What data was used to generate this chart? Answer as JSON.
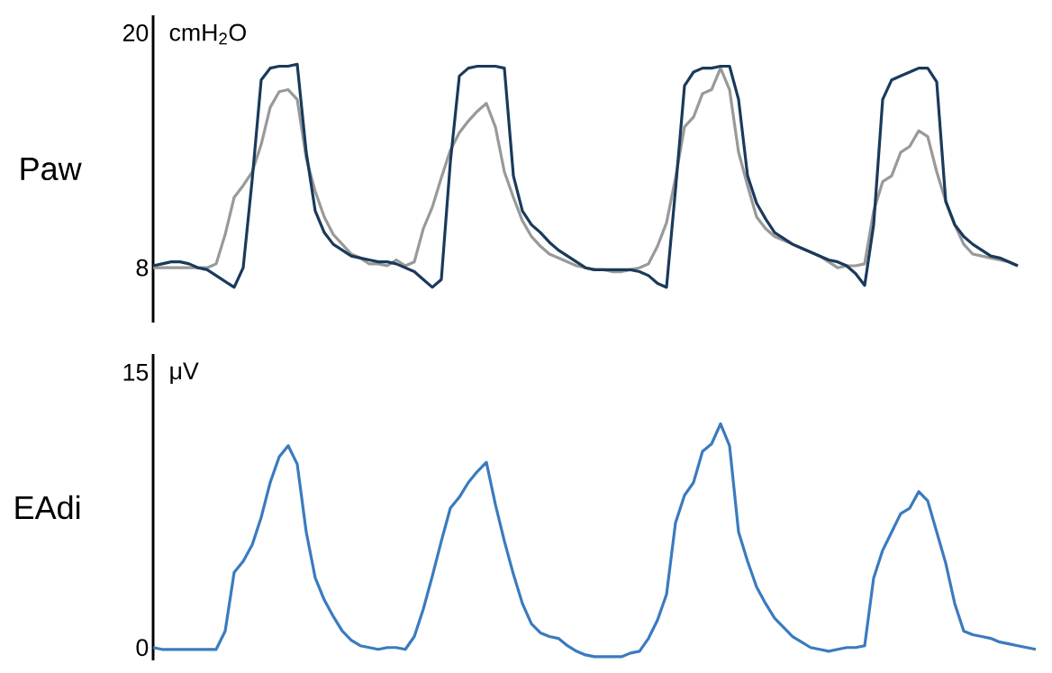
{
  "chart_data": [
    {
      "type": "line",
      "ylabel": "Paw",
      "annotations": [
        "cmH$_{2}$O"
      ],
      "tick_labels": "y",
      "ylim": [
        5.2,
        20.9
      ],
      "yticks": [
        8,
        20
      ],
      "categories": [
        null,
        null,
        null,
        null,
        null,
        null,
        null,
        null,
        null,
        null,
        null,
        null,
        null,
        null,
        null,
        null,
        null,
        null,
        null,
        null,
        null,
        null,
        null,
        null,
        null,
        null,
        null,
        null,
        null,
        null,
        null,
        null,
        null,
        null,
        null,
        null,
        null,
        null,
        null,
        null,
        null,
        null,
        null,
        null,
        null,
        null,
        null,
        null,
        null,
        null,
        null,
        null,
        null,
        null,
        null,
        null,
        null,
        null,
        null,
        null,
        null,
        null,
        null,
        null,
        null,
        null,
        null,
        null,
        null,
        null,
        null,
        null,
        null,
        null,
        null,
        null,
        null,
        null,
        null,
        null,
        null,
        null,
        null,
        null,
        null,
        null,
        null,
        null,
        null,
        null,
        null,
        null,
        null,
        null,
        null,
        null,
        null,
        null,
        null
      ],
      "series": [
        {
          "color": "#999999",
          "values": [
            8.0,
            8.0,
            8.0,
            8.0,
            8.0,
            8.0,
            8.0,
            8.2,
            9.7,
            11.6,
            12.2,
            12.9,
            14.3,
            16.2,
            17.0,
            17.1,
            16.6,
            13.6,
            11.9,
            10.6,
            9.7,
            9.2,
            8.7,
            8.5,
            8.2,
            8.2,
            8.1,
            8.4,
            8.1,
            8.3,
            10.0,
            11.1,
            12.6,
            14.0,
            14.9,
            15.5,
            16.0,
            16.4,
            15.2,
            12.9,
            11.6,
            10.4,
            9.6,
            9.1,
            8.7,
            8.5,
            8.3,
            8.1,
            8.0,
            7.9,
            7.9,
            7.8,
            7.8,
            7.9,
            8.0,
            8.2,
            9.1,
            10.3,
            12.6,
            15.2,
            15.7,
            16.9,
            17.1,
            18.2,
            17.1,
            13.9,
            12.2,
            10.6,
            10.0,
            9.6,
            9.4,
            9.2,
            9.0,
            8.8,
            8.6,
            8.3,
            8.0,
            8.1,
            8.1,
            8.2,
            10.9,
            12.4,
            12.7,
            13.9,
            14.2,
            15.0,
            14.7,
            12.9,
            11.4,
            10.2,
            9.2,
            8.7,
            8.6,
            8.5,
            8.4,
            8.3,
            8.1,
            null,
            null
          ]
        },
        {
          "color": "#1a3a5c",
          "values": [
            8.1,
            8.2,
            8.3,
            8.3,
            8.2,
            8.0,
            7.9,
            7.6,
            7.3,
            7.0,
            8.0,
            12.5,
            17.6,
            18.2,
            18.3,
            18.3,
            18.4,
            13.9,
            10.9,
            9.8,
            9.2,
            8.9,
            8.6,
            8.5,
            8.4,
            8.3,
            8.3,
            8.2,
            8.0,
            7.8,
            7.4,
            7.0,
            7.4,
            13.4,
            17.8,
            18.2,
            18.3,
            18.3,
            18.3,
            18.2,
            12.7,
            10.9,
            10.2,
            9.8,
            9.3,
            8.9,
            8.6,
            8.3,
            8.0,
            7.9,
            7.9,
            7.9,
            7.9,
            7.9,
            7.8,
            7.6,
            7.2,
            7.0,
            12.0,
            17.3,
            18.0,
            18.2,
            18.2,
            18.3,
            18.3,
            16.6,
            12.7,
            11.3,
            10.5,
            9.8,
            9.5,
            9.2,
            9.0,
            8.8,
            8.6,
            8.4,
            8.3,
            8.1,
            7.7,
            7.1,
            10.2,
            16.6,
            17.6,
            17.8,
            18.0,
            18.2,
            18.2,
            17.5,
            11.4,
            10.2,
            9.6,
            9.2,
            8.9,
            8.6,
            8.5,
            8.3,
            8.1,
            null,
            null
          ]
        }
      ]
    },
    {
      "type": "line",
      "ylabel": "EAdi",
      "annotations": [
        "μV"
      ],
      "tick_labels": "y",
      "ylim": [
        -0.7,
        16
      ],
      "yticks": [
        0,
        15
      ],
      "categories": [
        null,
        null,
        null,
        null,
        null,
        null,
        null,
        null,
        null,
        null,
        null,
        null,
        null,
        null,
        null,
        null,
        null,
        null,
        null,
        null,
        null,
        null,
        null,
        null,
        null,
        null,
        null,
        null,
        null,
        null,
        null,
        null,
        null,
        null,
        null,
        null,
        null,
        null,
        null,
        null,
        null,
        null,
        null,
        null,
        null,
        null,
        null,
        null,
        null,
        null,
        null,
        null,
        null,
        null,
        null,
        null,
        null,
        null,
        null,
        null,
        null,
        null,
        null,
        null,
        null,
        null,
        null,
        null,
        null,
        null,
        null,
        null,
        null,
        null,
        null,
        null,
        null,
        null,
        null,
        null,
        null,
        null,
        null,
        null,
        null,
        null,
        null,
        null,
        null,
        null,
        null,
        null,
        null,
        null,
        null,
        null,
        null,
        null,
        null
      ],
      "series": [
        {
          "color": "#3a7bbf",
          "values": [
            0.0,
            -0.1,
            -0.1,
            -0.1,
            -0.1,
            -0.1,
            -0.1,
            -0.1,
            0.9,
            4.1,
            4.7,
            5.6,
            7.1,
            9.0,
            10.4,
            11.0,
            10.0,
            6.3,
            3.8,
            2.6,
            1.7,
            0.9,
            0.4,
            0.1,
            0.0,
            -0.1,
            0.0,
            0.0,
            -0.1,
            0.6,
            2.1,
            3.9,
            5.8,
            7.6,
            8.2,
            9.0,
            9.6,
            10.1,
            7.8,
            5.8,
            4.0,
            2.4,
            1.3,
            0.8,
            0.6,
            0.5,
            0.1,
            -0.2,
            -0.4,
            -0.5,
            -0.5,
            -0.5,
            -0.5,
            -0.3,
            -0.2,
            0.5,
            1.5,
            2.9,
            6.8,
            8.3,
            9.0,
            10.7,
            11.1,
            12.2,
            11.0,
            6.3,
            4.7,
            3.3,
            2.4,
            1.6,
            1.1,
            0.6,
            0.3,
            0.0,
            -0.1,
            -0.2,
            -0.1,
            0.0,
            0.0,
            0.1,
            3.8,
            5.3,
            6.3,
            7.3,
            7.6,
            8.5,
            8.0,
            6.3,
            4.6,
            2.4,
            0.9,
            0.7,
            0.6,
            0.5,
            0.3,
            0.2,
            0.1,
            0.0,
            -0.1
          ]
        }
      ]
    }
  ]
}
